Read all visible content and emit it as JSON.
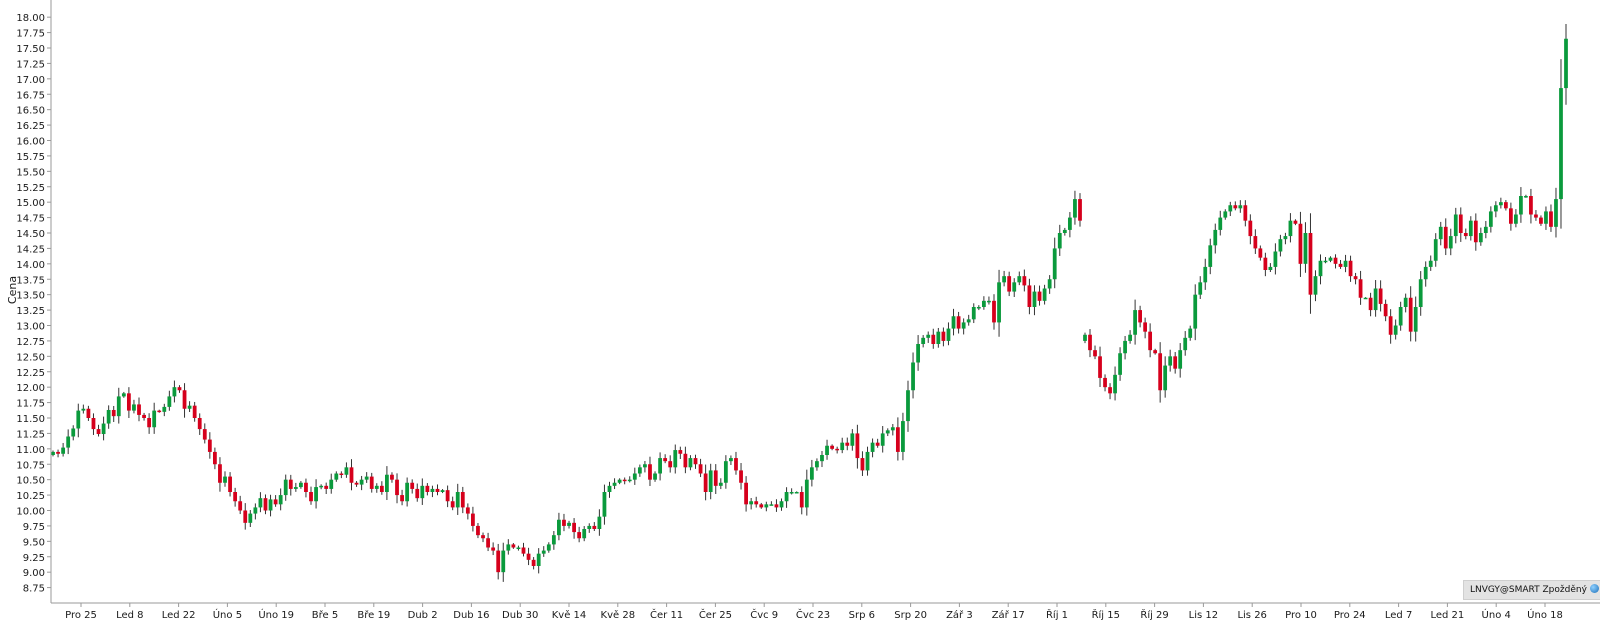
{
  "chart_data": {
    "type": "candlestick",
    "ylabel": "Cena",
    "ylim": [
      8.5,
      18.1
    ],
    "y_ticks": [
      "8.75",
      "9.00",
      "9.25",
      "9.50",
      "9.75",
      "10.00",
      "10.25",
      "10.50",
      "10.75",
      "11.00",
      "11.25",
      "11.50",
      "11.75",
      "12.00",
      "12.25",
      "12.50",
      "12.75",
      "13.00",
      "13.25",
      "13.50",
      "13.75",
      "14.00",
      "14.25",
      "14.50",
      "14.75",
      "15.00",
      "15.25",
      "15.50",
      "15.75",
      "16.00",
      "16.25",
      "16.50",
      "16.75",
      "17.00",
      "17.25",
      "17.50",
      "17.75",
      "18.00"
    ],
    "x_ticks": [
      "Pro 25",
      "Led 8",
      "Led 22",
      "Úno 5",
      "Úno 19",
      "Bře 5",
      "Bře 19",
      "Dub 2",
      "Dub 16",
      "Dub 30",
      "Kvě 14",
      "Kvě 28",
      "Čer 11",
      "Čer 25",
      "Čvc 9",
      "Čvc 23",
      "Srp 6",
      "Srp 20",
      "Zář 3",
      "Zář 17",
      "Říj 1",
      "Říj 15",
      "Říj 29",
      "Lis 12",
      "Lis 26",
      "Pro 10",
      "Pro 24",
      "Led 7",
      "Led 21",
      "Úno 4",
      "Úno 18"
    ],
    "up_color": "#0a9a3c",
    "down_color": "#d6001c",
    "closes": [
      10.95,
      10.92,
      11.02,
      11.2,
      11.33,
      11.62,
      11.65,
      11.5,
      11.32,
      11.24,
      11.41,
      11.63,
      11.53,
      11.85,
      11.9,
      11.62,
      11.72,
      11.55,
      11.5,
      11.35,
      11.62,
      11.6,
      11.68,
      11.85,
      12.0,
      11.95,
      11.65,
      11.7,
      11.5,
      11.32,
      11.15,
      10.95,
      10.75,
      10.45,
      10.55,
      10.3,
      10.15,
      10.0,
      9.8,
      9.95,
      10.05,
      10.2,
      10.0,
      10.18,
      10.1,
      10.25,
      10.5,
      10.35,
      10.38,
      10.45,
      10.3,
      10.15,
      10.38,
      10.4,
      10.35,
      10.5,
      10.6,
      10.58,
      10.7,
      10.45,
      10.42,
      10.5,
      10.55,
      10.35,
      10.4,
      10.3,
      10.58,
      10.5,
      10.25,
      10.15,
      10.45,
      10.35,
      10.2,
      10.4,
      10.3,
      10.35,
      10.3,
      10.33,
      10.15,
      10.05,
      10.3,
      10.05,
      9.95,
      9.75,
      9.6,
      9.55,
      9.4,
      9.35,
      9.0,
      9.35,
      9.45,
      9.4,
      9.4,
      9.3,
      9.2,
      9.1,
      9.3,
      9.35,
      9.45,
      9.6,
      9.85,
      9.75,
      9.8,
      9.65,
      9.55,
      9.7,
      9.75,
      9.7,
      9.9,
      10.3,
      10.4,
      10.45,
      10.5,
      10.48,
      10.5,
      10.6,
      10.7,
      10.75,
      10.5,
      10.6,
      10.85,
      10.8,
      10.7,
      10.98,
      10.92,
      10.7,
      10.85,
      10.75,
      10.6,
      10.3,
      10.65,
      10.4,
      10.45,
      10.8,
      10.85,
      10.65,
      10.45,
      10.1,
      10.15,
      10.1,
      10.05,
      10.1,
      10.1,
      10.05,
      10.15,
      10.3,
      10.3,
      10.3,
      10.05,
      10.5,
      10.7,
      10.8,
      10.9,
      11.05,
      11.0,
      10.98,
      11.1,
      11.05,
      11.25,
      10.85,
      10.65,
      10.95,
      11.1,
      11.05,
      11.25,
      11.3,
      11.35,
      10.95,
      11.45,
      11.95,
      12.4,
      12.7,
      12.8,
      12.85,
      12.7,
      12.9,
      12.75,
      12.95,
      13.15,
      12.95,
      13.05,
      13.1,
      13.3,
      13.3,
      13.4,
      13.4,
      13.05,
      13.7,
      13.8,
      13.55,
      13.7,
      13.8,
      13.65,
      13.3,
      13.55,
      13.4,
      13.6,
      13.75,
      14.25,
      14.5,
      14.55,
      14.75,
      15.05,
      14.7
    ],
    "note": "Data gap between Říj 1 and Říj 15 followed by a second segment",
    "closes_segment_2": [
      12.85,
      12.6,
      12.5,
      12.15,
      12.0,
      11.9,
      12.2,
      12.55,
      12.75,
      12.85,
      13.25,
      13.05,
      12.9,
      12.6,
      12.55,
      11.95,
      12.35,
      12.5,
      12.3,
      12.6,
      12.8,
      12.95,
      13.5,
      13.7,
      13.95,
      14.3,
      14.55,
      14.75,
      14.85,
      14.95,
      14.9,
      14.95,
      14.7,
      14.45,
      14.25,
      14.1,
      13.9,
      13.95,
      14.2,
      14.4,
      14.45,
      14.7,
      14.65,
      14.0,
      14.5,
      13.5,
      13.8,
      14.05,
      14.05,
      14.1,
      14.0,
      13.95,
      14.05,
      13.8,
      13.75,
      13.45,
      13.45,
      13.25,
      13.6,
      13.35,
      13.15,
      12.85,
      13.0,
      13.3,
      13.45,
      12.9,
      13.3,
      13.75,
      13.95,
      14.05,
      14.4,
      14.6,
      14.25,
      14.45,
      14.8,
      14.5,
      14.45,
      14.7,
      14.35,
      14.5,
      14.6,
      14.85,
      14.95,
      15.0,
      14.9,
      14.65,
      14.8,
      15.1,
      15.1,
      14.8,
      14.75,
      14.65,
      14.85,
      14.6,
      15.05,
      16.85,
      17.65
    ]
  },
  "status_badge": {
    "text": "LNVGY@SMART Zpožděný",
    "icon": "globe-icon"
  }
}
